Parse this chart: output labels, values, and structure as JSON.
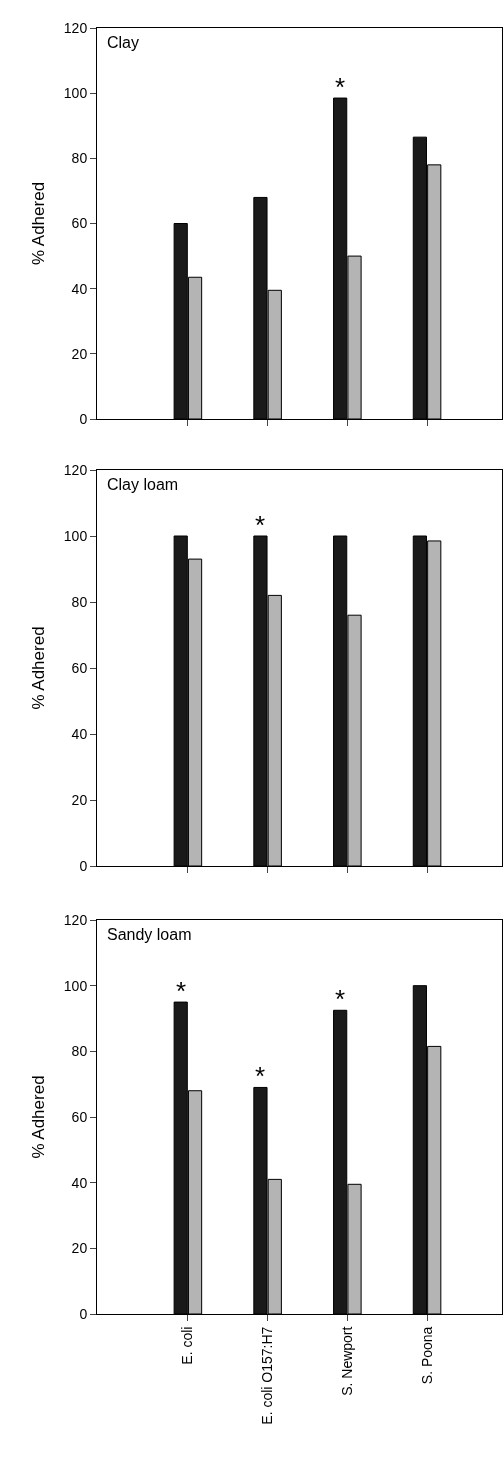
{
  "chart_data": [
    {
      "type": "bar",
      "title": "Clay",
      "ylabel": "% Adhered",
      "categories": [
        "E. coli",
        "E. coli O157:H7",
        "S. Newport",
        "S. Poona"
      ],
      "series": [
        {
          "color": "#1a1a1a",
          "values": [
            60,
            68,
            98.5,
            86.5
          ]
        },
        {
          "color": "#b4b4b4",
          "values": [
            43.5,
            39.5,
            50,
            78
          ]
        }
      ],
      "ylim": [
        0,
        120
      ],
      "yticks": [
        0,
        20,
        40,
        60,
        80,
        100,
        120
      ],
      "grid": false,
      "tick_labels": "y",
      "annotations": [
        {
          "text": "*",
          "x": "S. Newport",
          "y": 98.5
        }
      ]
    },
    {
      "type": "bar",
      "title": "Clay loam",
      "ylabel": "% Adhered",
      "categories": [
        "E. coli",
        "E. coli O157:H7",
        "S. Newport",
        "S. Poona"
      ],
      "series": [
        {
          "color": "#1a1a1a",
          "values": [
            100,
            100,
            100,
            100
          ]
        },
        {
          "color": "#b4b4b4",
          "values": [
            93,
            82,
            76,
            98.5
          ]
        }
      ],
      "ylim": [
        0,
        120
      ],
      "yticks": [
        0,
        20,
        40,
        60,
        80,
        100,
        120
      ],
      "grid": false,
      "tick_labels": "y",
      "annotations": [
        {
          "text": "*",
          "x": "E. coli O157:H7",
          "y": 100
        }
      ]
    },
    {
      "type": "bar",
      "title": "Sandy loam",
      "ylabel": "% Adhered",
      "categories": [
        "E. coli",
        "E. coli O157:H7",
        "S. Newport",
        "S. Poona"
      ],
      "series": [
        {
          "color": "#1a1a1a",
          "values": [
            95,
            69,
            92.5,
            100
          ]
        },
        {
          "color": "#b4b4b4",
          "values": [
            68,
            41,
            39.5,
            81.5
          ]
        }
      ],
      "ylim": [
        0,
        120
      ],
      "yticks": [
        0,
        20,
        40,
        60,
        80,
        100,
        120
      ],
      "grid": false,
      "annotations": [
        {
          "text": "*",
          "x": "E. coli",
          "y": 95
        },
        {
          "text": "*",
          "x": "E. coli O157:H7",
          "y": 69
        },
        {
          "text": "*",
          "x": "S. Newport",
          "y": 92.5
        }
      ]
    }
  ]
}
